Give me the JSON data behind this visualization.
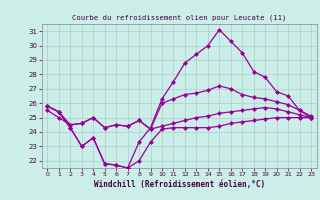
{
  "title": "Courbe du refroidissement olien pour Leucate (11)",
  "xlabel": "Windchill (Refroidissement éolien,°C)",
  "background_color": "#cceee8",
  "grid_color": "#aacccc",
  "line_color": "#990099",
  "hours": [
    0,
    1,
    2,
    3,
    4,
    5,
    6,
    7,
    8,
    9,
    10,
    11,
    12,
    13,
    14,
    15,
    16,
    17,
    18,
    19,
    20,
    21,
    22,
    23
  ],
  "line1": [
    25.8,
    25.4,
    24.3,
    23.0,
    23.6,
    21.8,
    21.7,
    21.5,
    23.3,
    24.3,
    26.3,
    27.5,
    28.8,
    29.4,
    30.0,
    31.1,
    30.3,
    29.5,
    28.2,
    27.8,
    26.8,
    26.5,
    25.5,
    25.0
  ],
  "line2": [
    25.8,
    25.4,
    24.5,
    24.6,
    25.0,
    24.3,
    24.5,
    24.4,
    24.8,
    24.2,
    26.0,
    26.3,
    26.6,
    26.7,
    26.9,
    27.2,
    27.0,
    26.6,
    26.4,
    26.3,
    26.1,
    25.9,
    25.5,
    25.1
  ],
  "line3": [
    25.5,
    25.0,
    24.5,
    24.6,
    25.0,
    24.3,
    24.5,
    24.4,
    24.8,
    24.2,
    24.4,
    24.6,
    24.8,
    25.0,
    25.1,
    25.3,
    25.4,
    25.5,
    25.6,
    25.7,
    25.6,
    25.4,
    25.2,
    25.0
  ],
  "line4": [
    25.8,
    25.4,
    24.3,
    23.0,
    23.6,
    21.8,
    21.7,
    21.5,
    22.0,
    23.3,
    24.2,
    24.3,
    24.3,
    24.3,
    24.3,
    24.4,
    24.6,
    24.7,
    24.8,
    24.9,
    25.0,
    25.0,
    25.0,
    25.0
  ],
  "ylim": [
    21.5,
    31.5
  ],
  "yticks": [
    22,
    23,
    24,
    25,
    26,
    27,
    28,
    29,
    30,
    31
  ],
  "xticks": [
    0,
    1,
    2,
    3,
    4,
    5,
    6,
    7,
    8,
    9,
    10,
    11,
    12,
    13,
    14,
    15,
    16,
    17,
    18,
    19,
    20,
    21,
    22,
    23
  ]
}
